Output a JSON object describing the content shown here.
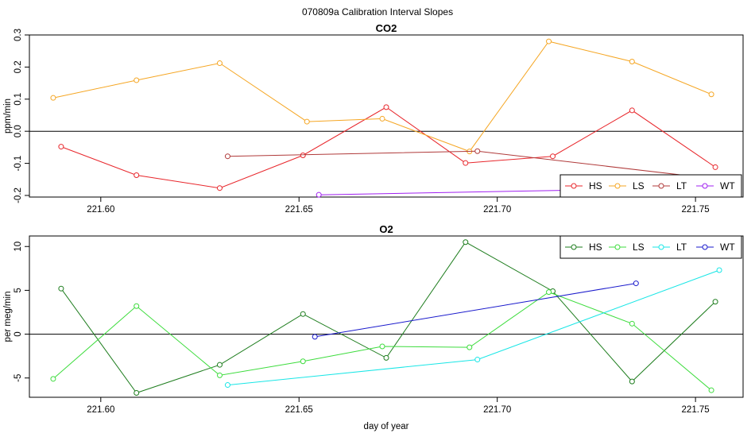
{
  "title": "070809a   Calibration Interval Slopes",
  "chart_data": [
    {
      "type": "line",
      "title": "CO2",
      "ylabel": "ppm/min",
      "xlabel": "",
      "xlim": [
        221.582,
        221.762
      ],
      "ylim": [
        -0.205,
        0.3
      ],
      "xticks": [
        "221.60",
        "221.65",
        "221.70",
        "221.75"
      ],
      "xtick_values": [
        221.6,
        221.65,
        221.7,
        221.75
      ],
      "yticks": [
        "-0.2",
        "-0.1",
        "0.0",
        "0.1",
        "0.2",
        "0.3"
      ],
      "ytick_values": [
        -0.2,
        -0.1,
        0.0,
        0.1,
        0.2,
        0.3
      ],
      "hline": 0,
      "legend_position": "bottom-right",
      "legend_layout": "horizontal",
      "series": [
        {
          "name": "HS",
          "color": "#e8262b",
          "x": [
            221.59,
            221.609,
            221.63,
            221.651,
            221.672,
            221.692,
            221.714,
            221.734,
            221.755
          ],
          "y": [
            -0.048,
            -0.137,
            -0.177,
            -0.075,
            0.075,
            -0.099,
            -0.078,
            0.065,
            -0.112
          ]
        },
        {
          "name": "LS",
          "color": "#f5a623",
          "x": [
            221.588,
            221.609,
            221.63,
            221.652,
            221.671,
            221.693,
            221.713,
            221.734,
            221.754
          ],
          "y": [
            0.104,
            0.159,
            0.212,
            0.03,
            0.039,
            -0.063,
            0.28,
            0.217,
            0.115
          ]
        },
        {
          "name": "LT",
          "color": "#b03a3a",
          "x": [
            221.632,
            221.695,
            221.756
          ],
          "y": [
            -0.078,
            -0.062,
            -0.15
          ]
        },
        {
          "name": "WT",
          "color": "#a020f0",
          "x": [
            221.655,
            221.735
          ],
          "y": [
            -0.198,
            -0.18
          ]
        }
      ]
    },
    {
      "type": "line",
      "title": "O2",
      "ylabel": "per meg/min",
      "xlabel": "day of year",
      "xlim": [
        221.582,
        221.762
      ],
      "ylim": [
        -7.2,
        11.2
      ],
      "xticks": [
        "221.60",
        "221.65",
        "221.70",
        "221.75"
      ],
      "xtick_values": [
        221.6,
        221.65,
        221.7,
        221.75
      ],
      "yticks": [
        "-5",
        "0",
        "5",
        "10"
      ],
      "ytick_values": [
        -5,
        0,
        5,
        10
      ],
      "hline": 0,
      "legend_position": "top-right",
      "legend_layout": "horizontal",
      "series": [
        {
          "name": "HS",
          "color": "#1e7d1e",
          "x": [
            221.59,
            221.609,
            221.63,
            221.651,
            221.672,
            221.692,
            221.714,
            221.734,
            221.755
          ],
          "y": [
            5.2,
            -6.7,
            -3.5,
            2.3,
            -2.7,
            10.5,
            4.9,
            -5.4,
            3.7
          ]
        },
        {
          "name": "LS",
          "color": "#3ddc3d",
          "x": [
            221.588,
            221.609,
            221.63,
            221.651,
            221.671,
            221.693,
            221.713,
            221.734,
            221.754
          ],
          "y": [
            -5.1,
            3.2,
            -4.7,
            -3.1,
            -1.4,
            -1.5,
            4.8,
            1.2,
            -6.4
          ]
        },
        {
          "name": "LT",
          "color": "#19e6e6",
          "x": [
            221.632,
            221.695,
            221.756
          ],
          "y": [
            -5.8,
            -2.9,
            7.3
          ]
        },
        {
          "name": "WT",
          "color": "#1a1acc",
          "x": [
            221.654,
            221.735
          ],
          "y": [
            -0.3,
            5.8
          ]
        }
      ]
    }
  ]
}
